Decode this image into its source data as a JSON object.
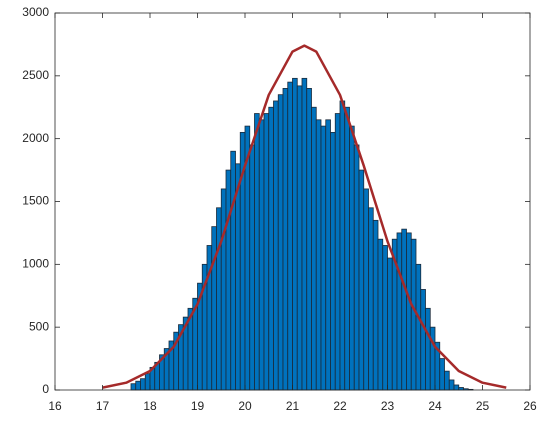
{
  "chart_data": {
    "type": "histogram",
    "bins": [
      17.6,
      17.7,
      17.8,
      17.9,
      18.0,
      18.1,
      18.2,
      18.3,
      18.4,
      18.5,
      18.6,
      18.7,
      18.8,
      18.9,
      19.0,
      19.1,
      19.2,
      19.3,
      19.4,
      19.5,
      19.6,
      19.7,
      19.8,
      19.9,
      20.0,
      20.1,
      20.2,
      20.3,
      20.4,
      20.5,
      20.6,
      20.7,
      20.8,
      20.9,
      21.0,
      21.1,
      21.2,
      21.3,
      21.4,
      21.5,
      21.6,
      21.7,
      21.8,
      21.9,
      22.0,
      22.1,
      22.2,
      22.3,
      22.4,
      22.5,
      22.6,
      22.7,
      22.8,
      22.9,
      23.0,
      23.1,
      23.2,
      23.3,
      23.4,
      23.5,
      23.6,
      23.7,
      23.8,
      23.9,
      24.0,
      24.1,
      24.2,
      24.3,
      24.4,
      24.5,
      24.6,
      24.7,
      24.8
    ],
    "counts": [
      50,
      70,
      90,
      130,
      180,
      220,
      280,
      330,
      390,
      460,
      520,
      580,
      650,
      730,
      850,
      1000,
      1150,
      1300,
      1450,
      1600,
      1750,
      1900,
      1800,
      2050,
      2100,
      1950,
      2200,
      2150,
      2200,
      2250,
      2300,
      2350,
      2400,
      2450,
      2480,
      2420,
      2480,
      2400,
      2250,
      2150,
      2100,
      2150,
      2050,
      2200,
      2300,
      2250,
      2100,
      1950,
      1750,
      1600,
      1450,
      1350,
      1200,
      1150,
      1050,
      1200,
      1250,
      1280,
      1250,
      1200,
      1000,
      800,
      650,
      500,
      380,
      250,
      150,
      80,
      40,
      20,
      10,
      5
    ],
    "color": "#0072bd",
    "edge_color": "#1a2a3a",
    "curve": {
      "color": "#a52a2a",
      "x": [
        17,
        17.5,
        18,
        18.5,
        19,
        19.5,
        20,
        20.5,
        21,
        21.25,
        21.5,
        22,
        22.5,
        23,
        23.5,
        24,
        24.5,
        25,
        25.5
      ],
      "y": [
        19,
        58,
        151,
        344,
        683,
        1183,
        1785,
        2348,
        2693,
        2740,
        2693,
        2348,
        1785,
        1183,
        683,
        344,
        151,
        58,
        19
      ]
    },
    "xlim": [
      16,
      26
    ],
    "xticks": [
      16,
      17,
      18,
      19,
      20,
      21,
      22,
      23,
      24,
      25,
      26
    ],
    "ylim": [
      0,
      3000
    ],
    "yticks": [
      0,
      500,
      1000,
      1500,
      2000,
      2500,
      3000
    ]
  }
}
